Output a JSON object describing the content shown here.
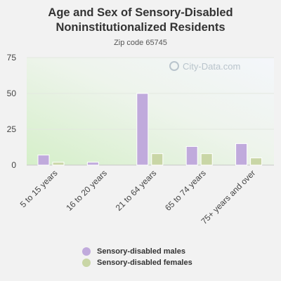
{
  "title_line1": "Age and Sex of Sensory-Disabled",
  "title_line2": "Noninstitutionalized Residents",
  "subtitle": "Zip code 65745",
  "watermark": "City-Data.com",
  "colors": {
    "males": "#c0aadc",
    "females": "#c9d6a6"
  },
  "chart_data": {
    "type": "bar",
    "categories": [
      "5 to 15 years",
      "16 to 20 years",
      "21 to 64 years",
      "65 to 74 years",
      "75+ years and over"
    ],
    "series": [
      {
        "name": "Sensory-disabled males",
        "values": [
          7,
          2,
          50,
          13,
          15
        ]
      },
      {
        "name": "Sensory-disabled females",
        "values": [
          2,
          0,
          8,
          8,
          5
        ]
      }
    ],
    "ylim": [
      0,
      75
    ],
    "yticks": [
      0,
      25,
      50,
      75
    ],
    "ytick_labels": [
      "0",
      "25",
      "50",
      "75"
    ],
    "grid": true,
    "legend": "bottom"
  }
}
